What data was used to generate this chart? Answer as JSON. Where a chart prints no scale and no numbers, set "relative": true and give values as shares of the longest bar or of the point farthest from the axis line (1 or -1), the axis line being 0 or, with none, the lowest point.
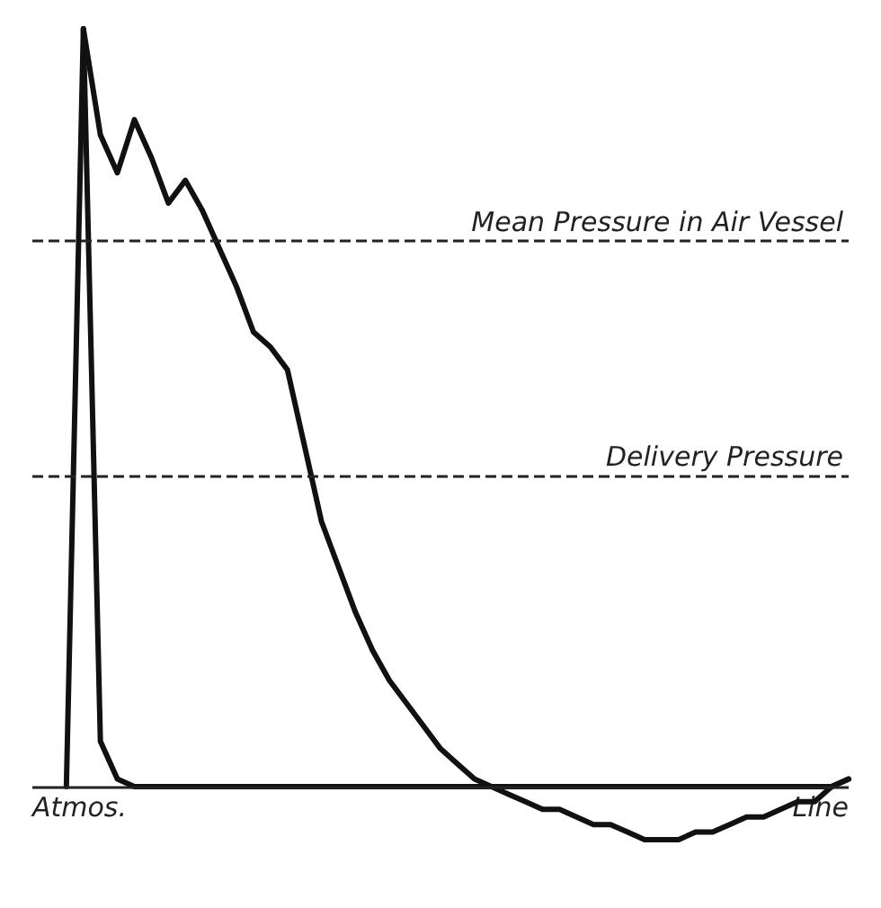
{
  "chart_data": {
    "type": "line",
    "relative": true,
    "marker": "none",
    "line_style": "solid",
    "categories": [
      null,
      null,
      null,
      null,
      null,
      null,
      null,
      null,
      null,
      null,
      null,
      null,
      null,
      null,
      null,
      null,
      null,
      null,
      null,
      null,
      null,
      null,
      null,
      null,
      null,
      null,
      null,
      null,
      null,
      null,
      null,
      null,
      null,
      null,
      null,
      null,
      null,
      null,
      null,
      null,
      null,
      null,
      null,
      null,
      null,
      null,
      null,
      null,
      null
    ],
    "series": [
      {
        "color": "#111111",
        "values": [
          null,
          null,
          0,
          1,
          0.86,
          0.81,
          0.88,
          0.83,
          0.77,
          0.8,
          0.76,
          0.71,
          0.66,
          0.6,
          0.58,
          0.55,
          0.45,
          0.35,
          0.29,
          0.23,
          0.18,
          0.14,
          0.11,
          0.08,
          0.05,
          0.03,
          0.01,
          0,
          -0.01,
          -0.02,
          -0.03,
          -0.03,
          -0.04,
          -0.05,
          -0.05,
          -0.06,
          -0.07,
          -0.07,
          -0.07,
          -0.06,
          -0.06,
          -0.05,
          -0.04,
          -0.04,
          -0.03,
          -0.02,
          -0.02,
          0,
          0.01
        ]
      },
      {
        "color": "#111111",
        "values": [
          null,
          null,
          null,
          1,
          0.06,
          0.01,
          0,
          0,
          0,
          0,
          0,
          0,
          0,
          0,
          0,
          0,
          0,
          0,
          0,
          0,
          0,
          0,
          0,
          0,
          0,
          0,
          0,
          0,
          0,
          0,
          0,
          0,
          0,
          0,
          0,
          0,
          0,
          0,
          0,
          0,
          0,
          0,
          0,
          0,
          0,
          0,
          0,
          0,
          0.01
        ]
      }
    ],
    "ref_lines": [
      {
        "axis": "y",
        "value": 0.72,
        "label": "Mean Pressure in Air Vessel",
        "color": "#222222",
        "line_style": "dashed"
      },
      {
        "axis": "y",
        "value": 0.41,
        "label": "Delivery Pressure",
        "color": "#222222",
        "line_style": "dashed"
      },
      {
        "axis": "y",
        "value": 0,
        "color": "#222222",
        "line_style": "solid"
      }
    ],
    "annotations": [
      "Atmos.",
      "Line"
    ]
  }
}
